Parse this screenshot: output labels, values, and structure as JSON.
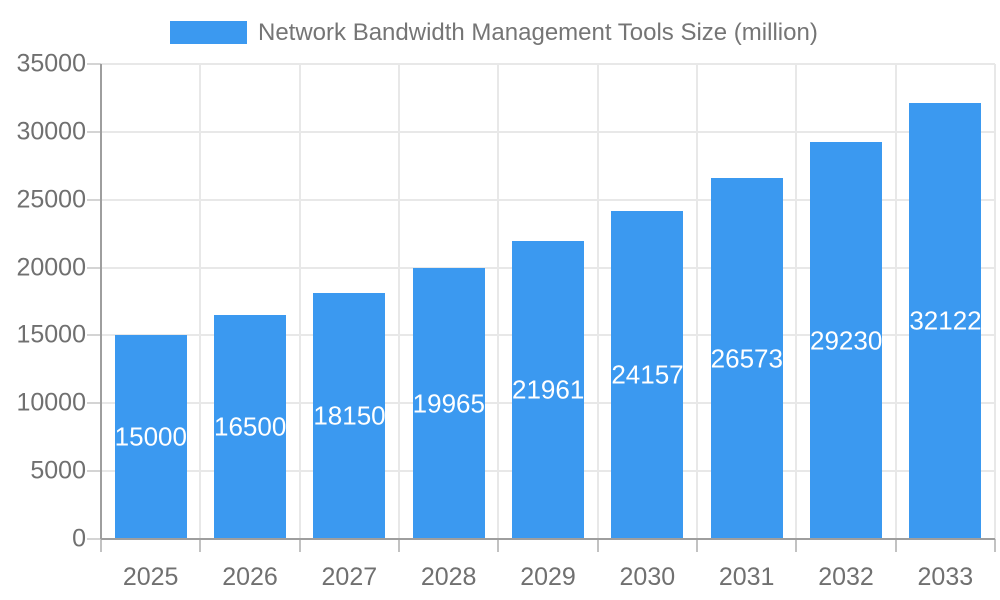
{
  "legend": {
    "label": "Network Bandwidth Management Tools Size (million)"
  },
  "colors": {
    "bar": "#3B99F0",
    "bar_label_text": "#ffffff",
    "legend_text": "#757575",
    "axis_text": "#707070",
    "gridline": "#e8e8e8",
    "axis_line": "#9e9e9e",
    "background": "#ffffff"
  },
  "chart_data": {
    "type": "bar",
    "title": "Network Bandwidth Management Tools Size (million)",
    "series_name": "Network Bandwidth Management Tools Size (million)",
    "categories": [
      "2025",
      "2026",
      "2027",
      "2028",
      "2029",
      "2030",
      "2031",
      "2032",
      "2033"
    ],
    "values": [
      15000,
      16500,
      18150,
      19965,
      21961,
      24157,
      26573,
      29230,
      32122
    ],
    "bar_value_labels": [
      "15000",
      "16500",
      "18150",
      "19965",
      "21961",
      "24157",
      "26573",
      "29230",
      "32122"
    ],
    "xlabel": "",
    "ylabel": "",
    "ylim": [
      0,
      35000
    ],
    "y_ticks": [
      0,
      5000,
      10000,
      15000,
      20000,
      25000,
      30000,
      35000
    ],
    "y_tick_labels": [
      "0",
      "5000",
      "10000",
      "15000",
      "20000",
      "25000",
      "30000",
      "35000"
    ],
    "grid": true,
    "legend_position": "top",
    "bar_labels_visible": true,
    "bar_label_position": "center"
  }
}
